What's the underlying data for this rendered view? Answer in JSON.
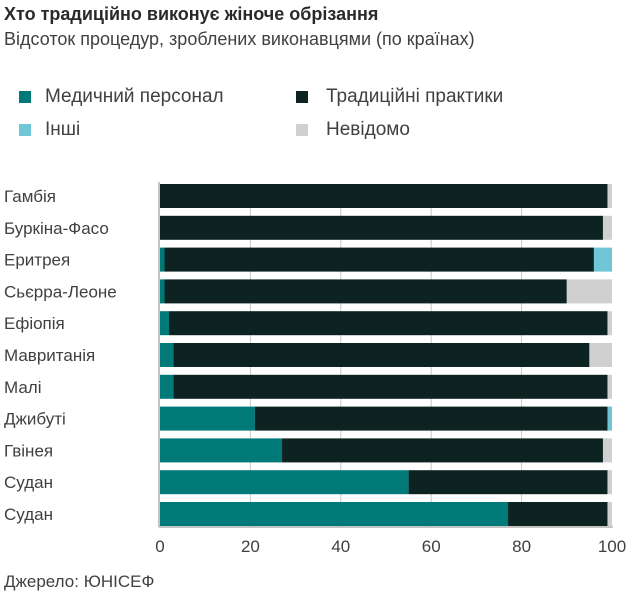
{
  "chart_data": {
    "type": "bar",
    "orientation": "horizontal",
    "stacked": true,
    "title": "Хто традиційно виконує жіноче обрізання",
    "subtitle": "Відсоток процедур, зроблених виконавцями (по країнах)",
    "xlabel": "",
    "ylabel": "",
    "xlim": [
      0,
      100
    ],
    "xticks": [
      "0",
      "20",
      "40",
      "60",
      "80",
      "100"
    ],
    "categories": [
      "Гамбія",
      "Буркіна-Фасо",
      "Еритрея",
      "Сьєрра-Леоне",
      "Ефіопія",
      "Мавританія",
      "Малі",
      "Джибуті",
      "Гвінея",
      "Судан",
      "Судан"
    ],
    "series": [
      {
        "name": "Медичний персонал",
        "color": "#007a78",
        "values": [
          0,
          0,
          1,
          1,
          2,
          3,
          3,
          21,
          27,
          55,
          77
        ]
      },
      {
        "name": "Традиційні практики",
        "color": "#0c2322",
        "values": [
          99,
          98,
          95,
          89,
          97,
          92,
          96,
          78,
          71,
          44,
          22
        ]
      },
      {
        "name": "Інші",
        "color": "#6fc6d6",
        "values": [
          0,
          0,
          4,
          0,
          0,
          0,
          0,
          1,
          0,
          0,
          0
        ]
      },
      {
        "name": "Невідомо",
        "color": "#d0d0d0",
        "values": [
          1,
          2,
          0,
          10,
          1,
          5,
          1,
          0,
          2,
          1,
          1
        ]
      }
    ],
    "legend": "top",
    "grid": true,
    "source": "Джерело: ЮНІСЕФ"
  }
}
